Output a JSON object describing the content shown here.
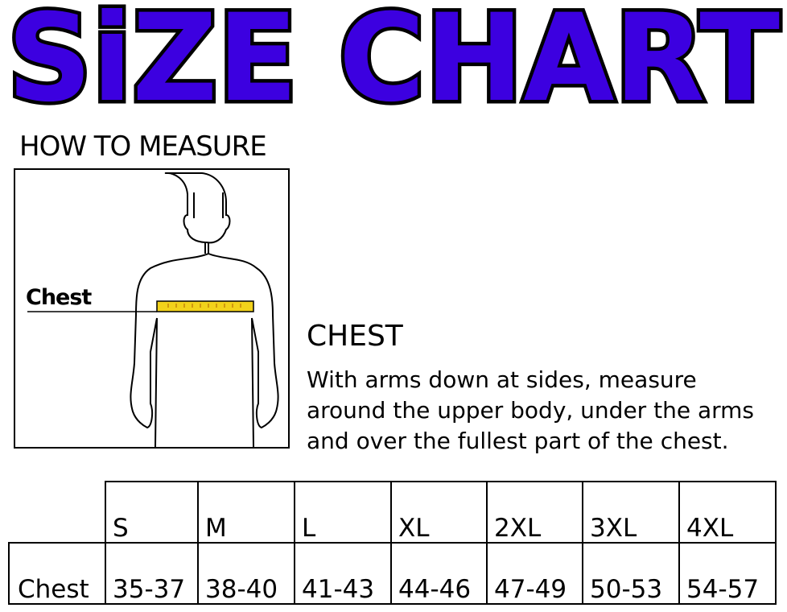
{
  "title": "SiZE CHART",
  "colors": {
    "title_fill": "#3c00e0",
    "tape": "#f2d21b"
  },
  "how_to_measure": {
    "heading": "HOW TO MEASURE",
    "figure_label": "Chest",
    "figure_icon": "human-torso-outline"
  },
  "section": {
    "heading": "CHEST",
    "lines": [
      "With arms down at sides, measure",
      "around the upper body, under the arms",
      "and over the fullest part of the chest."
    ]
  },
  "table": {
    "sizes": [
      "S",
      "M",
      "L",
      "XL",
      "2XL",
      "3XL",
      "4XL"
    ],
    "row_label": "Chest",
    "values": [
      "35-37",
      "38-40",
      "41-43",
      "44-46",
      "47-49",
      "50-53",
      "54-57"
    ]
  }
}
